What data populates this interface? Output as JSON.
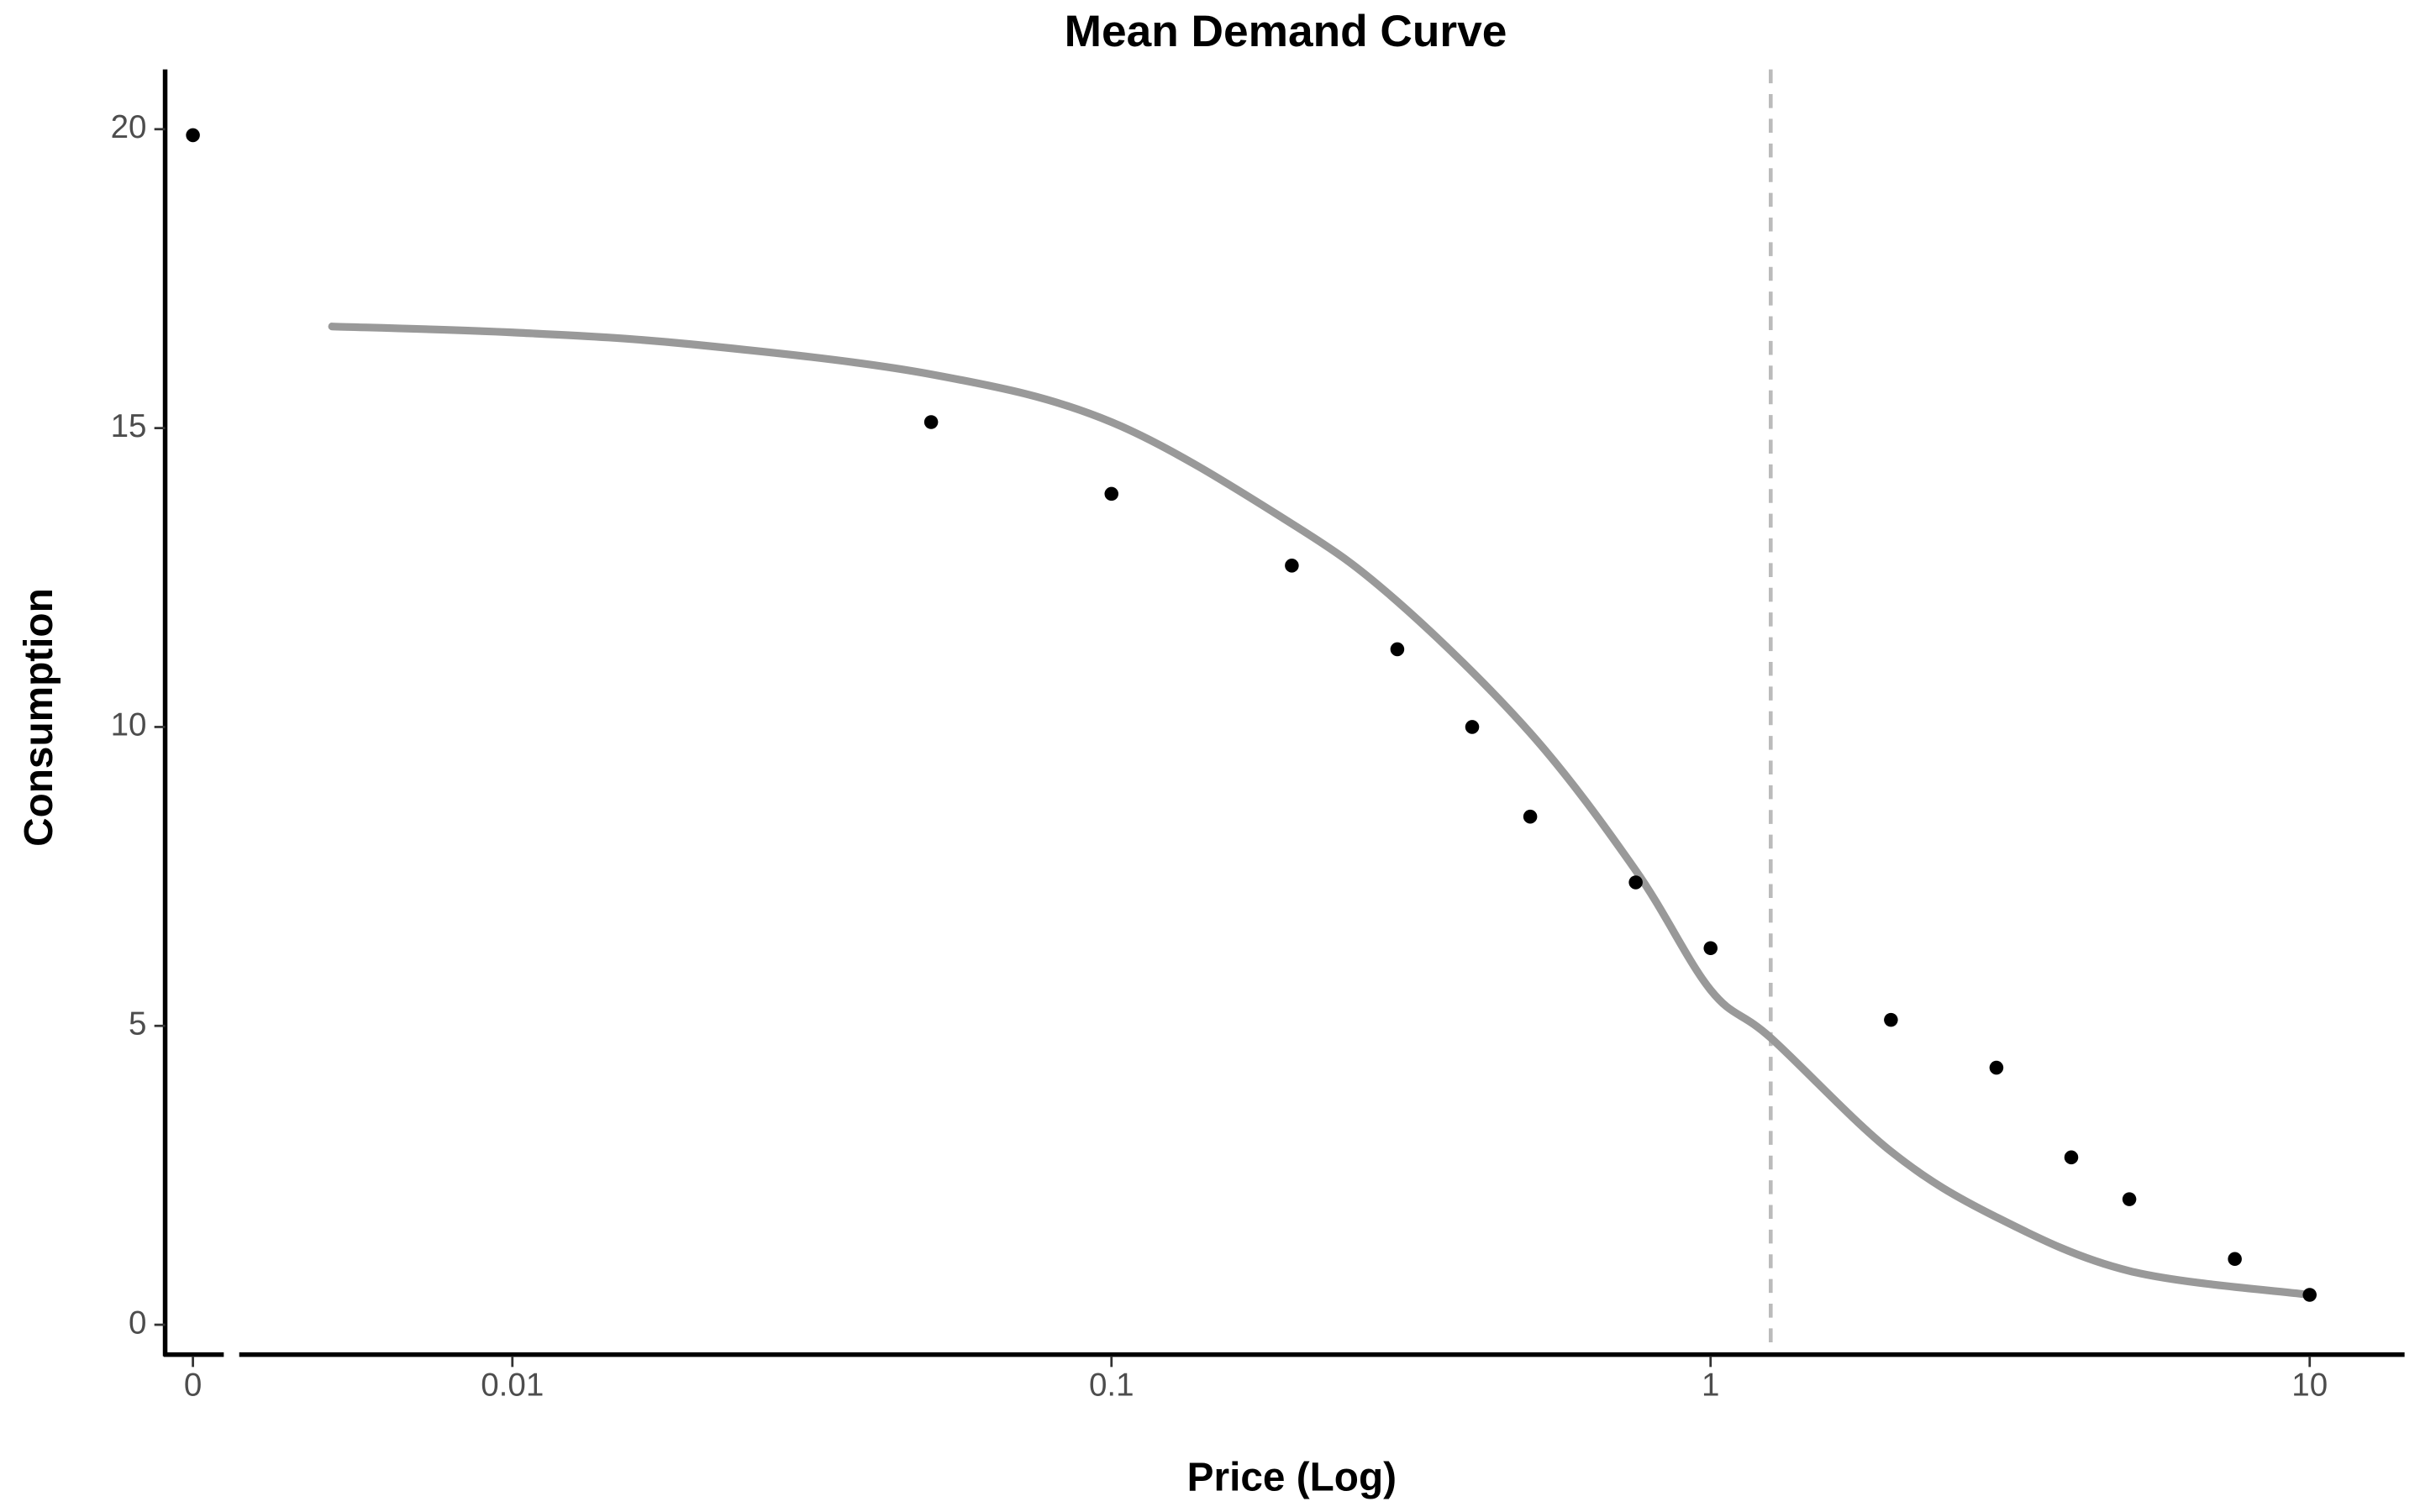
{
  "chart_data": {
    "type": "scatter",
    "title": "Mean Demand Curve",
    "x_label": "Price (Log)",
    "y_label": "Consumption",
    "x_scale": "log",
    "grid": false,
    "xlim": [
      0.0035,
      14.4
    ],
    "xticks": [
      0.01,
      0.1,
      1,
      10
    ],
    "zero_xtick": 0,
    "ylim": [
      -0.5,
      21
    ],
    "yticks": [
      0,
      5,
      10,
      15,
      20
    ],
    "points": {
      "color": "#000000",
      "x": [
        0,
        0.05,
        0.1,
        0.2,
        0.3,
        0.4,
        0.5,
        0.75,
        1,
        2,
        3,
        4,
        5,
        7.5,
        10
      ],
      "values": [
        19.9,
        15.1,
        13.9,
        12.7,
        11.3,
        10.0,
        8.5,
        7.4,
        6.3,
        5.1,
        4.3,
        2.8,
        2.1,
        1.1,
        0.5
      ]
    },
    "curve": {
      "color": "#999999",
      "x": [
        0.005,
        0.01,
        0.02,
        0.05,
        0.1,
        0.2,
        0.3,
        0.5,
        0.75,
        1,
        1.26,
        2,
        3,
        5,
        10
      ],
      "values": [
        16.7,
        16.6,
        16.4,
        15.9,
        15.1,
        13.4,
        12.1,
        9.9,
        7.6,
        5.6,
        4.8,
        2.9,
        1.8,
        0.9,
        0.5
      ]
    },
    "reference_line": {
      "x": 1.26,
      "color": "#bbbbbb"
    }
  }
}
